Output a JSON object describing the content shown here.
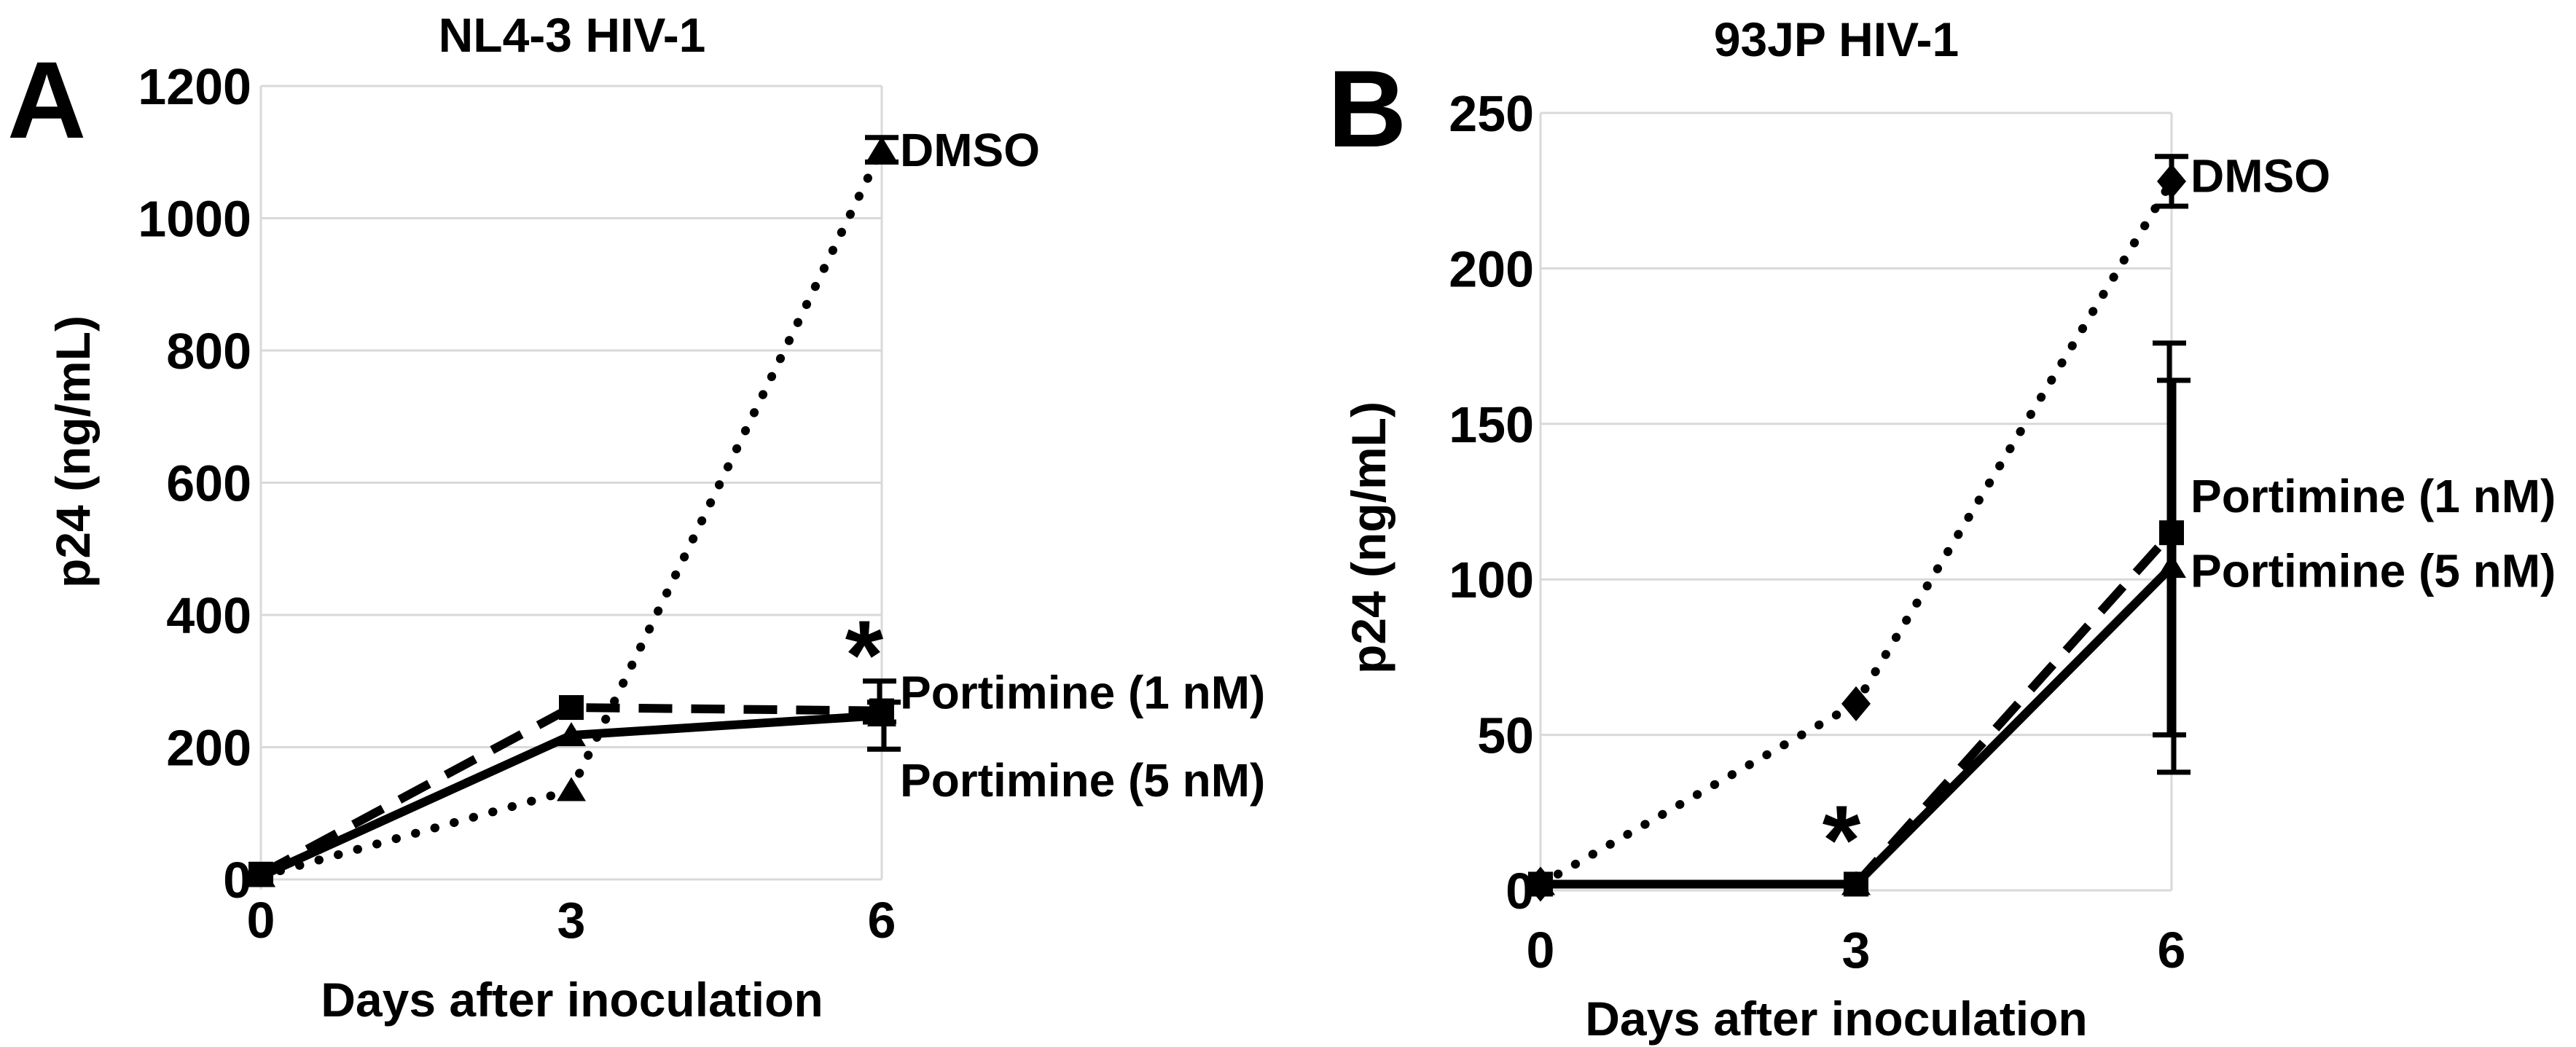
{
  "figure_type": "two-panel scientific line-chart figure",
  "colors": {
    "ink": "#000000",
    "grid": "#d9d9d9",
    "background": "#ffffff"
  },
  "chart_data": [
    {
      "type": "line",
      "panel_letter": "A",
      "title": "NL4-3 HIV-1",
      "x_label": "Days after inoculation",
      "y_label": "p24 (ng/mL)",
      "x_ticks": [
        0,
        3,
        6
      ],
      "y_ticks": [
        0,
        200,
        400,
        600,
        800,
        1000,
        1200
      ],
      "x_range": [
        0,
        6
      ],
      "y_range": [
        0,
        1200
      ],
      "grid": "horizontal gridlines, light gray, boxed plot area",
      "legend_position": "series labels at right ends of lines",
      "significance": {
        "symbol": "*",
        "x": 6,
        "y": 362
      },
      "series": [
        {
          "name": "DMSO",
          "line_style": "dotted",
          "marker": "triangle",
          "x": [
            0,
            3,
            6
          ],
          "y": [
            5,
            135,
            1104
          ],
          "error_bars": [
            {
              "x": 6,
              "low": 1085,
              "high": 1122
            }
          ],
          "label": {
            "text": "DMSO",
            "y": 1104
          }
        },
        {
          "name": "Portimine (1 nM)",
          "line_style": "dashed",
          "marker": "square",
          "x": [
            0,
            3,
            6
          ],
          "y": [
            8,
            260,
            255
          ],
          "error_bars": [
            {
              "x": 6,
              "low": 238,
              "high": 300
            }
          ],
          "label": {
            "text": "Portimine (1 nM)",
            "y": 284
          }
        },
        {
          "name": "Portimine (5 nM)",
          "line_style": "solid",
          "marker": "triangle",
          "x": [
            0,
            3,
            6
          ],
          "y": [
            5,
            218,
            248
          ],
          "error_bars": [
            {
              "x": 6,
              "low": 197,
              "high": 268
            }
          ],
          "label": {
            "text": "Portimine (5 nM)",
            "y": 151
          }
        }
      ]
    },
    {
      "type": "line",
      "panel_letter": "B",
      "title": "93JP HIV-1",
      "x_label": "Days after inoculation",
      "y_label": "p24 (ng/mL)",
      "x_ticks": [
        0,
        3,
        6
      ],
      "y_ticks": [
        0,
        50,
        100,
        150,
        200,
        250
      ],
      "x_range": [
        0,
        6
      ],
      "y_range": [
        0,
        250
      ],
      "grid": "horizontal gridlines, light gray, boxed plot area",
      "legend_position": "series labels at right ends of lines",
      "significance": {
        "symbol": "*",
        "x": 3,
        "y": 21
      },
      "series": [
        {
          "name": "DMSO",
          "line_style": "dotted",
          "marker": "diamond",
          "x": [
            0,
            3,
            6
          ],
          "y": [
            2,
            60,
            228
          ],
          "error_bars": [
            {
              "x": 6,
              "low": 220,
              "high": 236
            }
          ],
          "label": {
            "text": "DMSO",
            "y": 230
          }
        },
        {
          "name": "Portimine (1 nM)",
          "line_style": "dashed",
          "marker": "square",
          "x": [
            0,
            3,
            6
          ],
          "y": [
            2,
            2,
            115
          ],
          "error_bars": [
            {
              "x": 6,
              "low": 50,
              "high": 176
            }
          ],
          "label": {
            "text": "Portimine (1 nM)",
            "y": 127
          }
        },
        {
          "name": "Portimine (5 nM)",
          "line_style": "solid",
          "marker": "triangle",
          "x": [
            0,
            3,
            6
          ],
          "y": [
            2,
            2,
            104
          ],
          "error_bars": [
            {
              "x": 6,
              "low": 38,
              "high": 164
            }
          ],
          "label": {
            "text": "Portimine (5 nM)",
            "y": 103
          }
        }
      ]
    }
  ]
}
